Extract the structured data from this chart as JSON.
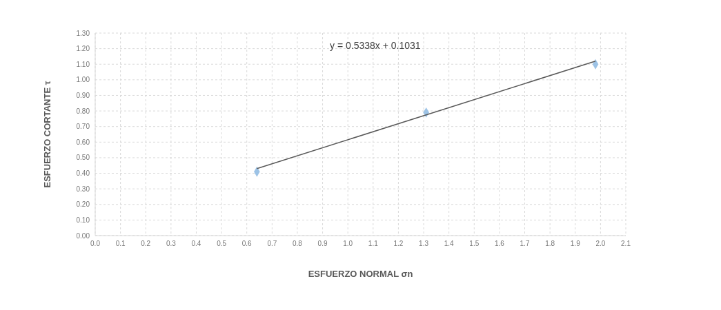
{
  "chart_data": {
    "type": "scatter",
    "xlabel": "ESFUERZO NORMAL σn",
    "ylabel": "ESFUERZO CORTANTE τ",
    "annotations": [
      "y = 0.5338x + 0.1031"
    ],
    "series": [
      {
        "color": "#9dc3e6",
        "marker": "diamond",
        "x": [
          0.64,
          1.31,
          1.98
        ],
        "values": [
          0.41,
          0.79,
          1.1
        ]
      },
      {
        "type": "line",
        "color": "#595959",
        "marker": "none",
        "line_style": "solid",
        "x": [
          0.64,
          1.98
        ],
        "values": [
          0.43,
          1.12
        ]
      }
    ],
    "xlim": [
      0,
      2.1
    ],
    "xticks": [
      {
        "value": 0,
        "label": "0.0"
      },
      0.1,
      0.2,
      0.3,
      0.4,
      0.5,
      0.6,
      0.7,
      0.8,
      0.9,
      {
        "value": 1,
        "label": "1.0"
      },
      1.1,
      1.2,
      1.3,
      1.4,
      1.5,
      1.6,
      1.7,
      1.8,
      1.9,
      {
        "value": 2,
        "label": "2.0"
      },
      2.1
    ],
    "ylim": [
      0,
      1.3
    ],
    "yticks": [
      {
        "value": 0,
        "label": "0.00"
      },
      {
        "value": 0.1,
        "label": "0.10"
      },
      {
        "value": 0.2,
        "label": "0.20"
      },
      {
        "value": 0.3,
        "label": "0.30"
      },
      {
        "value": 0.4,
        "label": "0.40"
      },
      {
        "value": 0.5,
        "label": "0.50"
      },
      {
        "value": 0.6,
        "label": "0.60"
      },
      {
        "value": 0.7,
        "label": "0.70"
      },
      {
        "value": 0.8,
        "label": "0.80"
      },
      {
        "value": 0.9,
        "label": "0.90"
      },
      {
        "value": 1,
        "label": "1.00"
      },
      {
        "value": 1.1,
        "label": "1.10"
      },
      {
        "value": 1.2,
        "label": "1.20"
      },
      {
        "value": 1.3,
        "label": "1.30"
      }
    ],
    "grid": true
  }
}
